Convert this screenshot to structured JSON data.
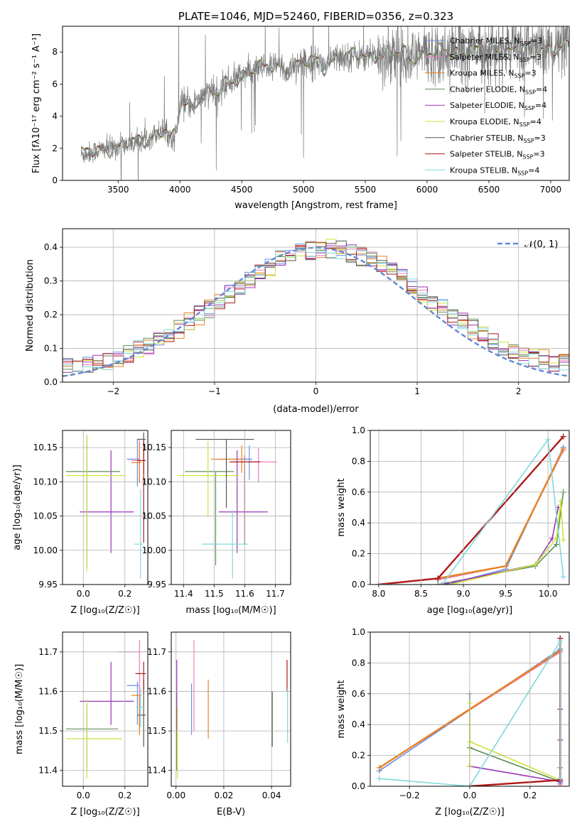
{
  "colors": {
    "Chabrier MILES": "#6c8ee0",
    "Salpeter MILES": "#e67fbf",
    "Kroupa MILES": "#e8821e",
    "Chabrier ELODIE": "#5f8f55",
    "Salpeter ELODIE": "#9b35b8",
    "Kroupa ELODIE": "#cde33c",
    "Chabrier STELIB": "#555555",
    "Salpeter STELIB": "#b01818",
    "Kroupa STELIB": "#80d8dc"
  },
  "chart_data": [
    {
      "id": "spectrum",
      "type": "line",
      "title": "PLATE=1046, MJD=52460, FIBERID=0356, z=0.323",
      "xlabel": "wavelength [Angstrom, rest frame]",
      "ylabel": "Flux [fλ10⁻¹⁷ erg cm⁻² s⁻¹ A⁻¹]",
      "xlim": [
        3050,
        7150
      ],
      "ylim": [
        0,
        9.6
      ],
      "xticks": [
        3500,
        4000,
        4500,
        5000,
        5500,
        6000,
        6500,
        7000
      ],
      "yticks": [
        0,
        2,
        4,
        6,
        8
      ],
      "grid": false,
      "legend_position": "top-right",
      "legend": [
        "Chabrier MILES, N_SSP=3",
        "Salpeter MILES, N_SSP=3",
        "Kroupa MILES, N_SSP=3",
        "Chabrier ELODIE, N_SSP=4",
        "Salpeter ELODIE, N_SSP=4",
        "Kroupa ELODIE, N_SSP=4",
        "Chabrier STELIB, N_SSP=3",
        "Salpeter STELIB, N_SSP=3",
        "Kroupa STELIB, N_SSP=4"
      ],
      "continuum_x": [
        3200,
        3250,
        3400,
        3500,
        3600,
        3700,
        3800,
        3900,
        4000,
        4100,
        4200,
        4300,
        4400,
        4500,
        4600,
        4800,
        5000,
        5200,
        5500,
        5800,
        6000,
        6300,
        6600,
        7000,
        7150
      ],
      "continuum_y": [
        1.6,
        1.7,
        2.0,
        2.1,
        2.3,
        2.5,
        2.9,
        3.3,
        4.7,
        5.0,
        5.3,
        5.7,
        6.1,
        6.6,
        6.9,
        7.1,
        7.3,
        7.6,
        7.8,
        7.9,
        7.9,
        8.1,
        8.2,
        8.3,
        8.3
      ]
    },
    {
      "id": "residuals",
      "type": "step",
      "xlabel": "(data-model)/error",
      "ylabel": "Normed distribution",
      "xlim": [
        -2.5,
        2.5
      ],
      "ylim": [
        0,
        0.455
      ],
      "xticks": [
        -2,
        -1,
        0,
        1,
        2
      ],
      "yticks": [
        0.0,
        0.1,
        0.2,
        0.3,
        0.4
      ],
      "grid": true,
      "legend_position": "top-right",
      "legend": [
        "𝒩(0, 1)"
      ],
      "bin_width": 0.1,
      "bin_start": -2.5
    },
    {
      "id": "age-vs-Z",
      "type": "errorbar",
      "xlabel": "Z [log₁₀(Z/Z☉)]",
      "ylabel": "age  [log₁₀(age/yr)]",
      "xlim": [
        -0.1,
        0.31
      ],
      "ylim": [
        9.95,
        10.175
      ],
      "xticks": [
        0.0,
        0.2
      ],
      "yticks": [
        9.95,
        10.0,
        10.05,
        10.1,
        10.15
      ],
      "points": [
        {
          "model": "Chabrier MILES",
          "x": 0.26,
          "xerr": [
            0.05,
            0.01
          ],
          "y": 10.133,
          "yerr": [
            0.04,
            0.03
          ]
        },
        {
          "model": "Salpeter MILES",
          "x": 0.27,
          "xerr": [
            0.04,
            0.01
          ],
          "y": 10.131,
          "yerr": [
            0.03,
            0.03
          ]
        },
        {
          "model": "Kroupa MILES",
          "x": 0.27,
          "xerr": [
            0.04,
            0.01
          ],
          "y": 10.128,
          "yerr": [
            0.03,
            0.03
          ]
        },
        {
          "model": "Chabrier ELODIE",
          "x": 0.017,
          "xerr": [
            0.1,
            0.16
          ],
          "y": 10.115,
          "yerr": [
            0.14,
            0.05
          ]
        },
        {
          "model": "Salpeter ELODIE",
          "x": 0.133,
          "xerr": [
            0.15,
            0.11
          ],
          "y": 10.056,
          "yerr": [
            0.06,
            0.09
          ]
        },
        {
          "model": "Kroupa ELODIE",
          "x": 0.017,
          "xerr": [
            0.1,
            0.18
          ],
          "y": 10.109,
          "yerr": [
            0.14,
            0.06
          ]
        },
        {
          "model": "Chabrier STELIB",
          "x": 0.29,
          "xerr": [
            0.03,
            0.01
          ],
          "y": 10.162,
          "yerr": [
            0.05,
            0.01
          ]
        },
        {
          "model": "Salpeter STELIB",
          "x": 0.29,
          "xerr": [
            0.03,
            0.01
          ],
          "y": 10.131,
          "yerr": [
            0.12,
            0.03
          ]
        },
        {
          "model": "Kroupa STELIB",
          "x": 0.275,
          "xerr": [
            0.03,
            0.01
          ],
          "y": 10.009,
          "yerr": [
            0.05,
            0.08
          ]
        }
      ]
    },
    {
      "id": "age-vs-mass",
      "type": "errorbar",
      "xlabel": "mass [log₁₀(M/M☉)]",
      "ylabel": "",
      "xlim": [
        11.36,
        11.75
      ],
      "ylim": [
        9.95,
        10.175
      ],
      "xticks": [
        11.4,
        11.5,
        11.6,
        11.7
      ],
      "yticks": [
        9.95,
        10.0,
        10.05,
        10.1,
        10.15
      ],
      "points": [
        {
          "model": "Chabrier MILES",
          "x": 11.615,
          "xerr": [
            0.1,
            0.01
          ],
          "y": 10.133,
          "yerr": [
            0.03,
            0.02
          ]
        },
        {
          "model": "Salpeter MILES",
          "x": 11.645,
          "xerr": [
            0.05,
            0.06
          ],
          "y": 10.129,
          "yerr": [
            0.03,
            0.02
          ]
        },
        {
          "model": "Kroupa MILES",
          "x": 11.59,
          "xerr": [
            0.1,
            0.0
          ],
          "y": 10.133,
          "yerr": [
            0.02,
            0.02
          ]
        },
        {
          "model": "Chabrier ELODIE",
          "x": 11.505,
          "xerr": [
            0.1,
            0.06
          ],
          "y": 10.115,
          "yerr": [
            0.137,
            0.0
          ]
        },
        {
          "model": "Salpeter ELODIE",
          "x": 11.575,
          "xerr": [
            0.06,
            0.1
          ],
          "y": 10.056,
          "yerr": [
            0.06,
            0.09
          ]
        },
        {
          "model": "Kroupa ELODIE",
          "x": 11.48,
          "xerr": [
            0.1,
            0.1
          ],
          "y": 10.109,
          "yerr": [
            0.06,
            0.05
          ]
        },
        {
          "model": "Chabrier STELIB",
          "x": 11.54,
          "xerr": [
            0.1,
            0.09
          ],
          "y": 10.162,
          "yerr": [
            0.1,
            0.0
          ]
        },
        {
          "model": "Salpeter STELIB",
          "x": 11.6,
          "xerr": [
            0.05,
            0.05
          ],
          "y": 10.129,
          "yerr": [
            0.12,
            0.01
          ]
        },
        {
          "model": "Kroupa STELIB",
          "x": 11.56,
          "xerr": [
            0.1,
            0.05
          ],
          "y": 10.009,
          "yerr": [
            0.05,
            0.05
          ]
        }
      ]
    },
    {
      "id": "massweight-vs-age",
      "type": "line",
      "xlabel": "age  [log₁₀(age/yr)]",
      "ylabel": "mass weight",
      "xlim": [
        7.9,
        10.25
      ],
      "ylim": [
        0,
        1.0
      ],
      "xticks": [
        8.0,
        8.5,
        9.0,
        9.5,
        10.0
      ],
      "yticks": [
        0.0,
        0.2,
        0.4,
        0.6,
        0.8,
        1.0
      ],
      "grid": true,
      "series": [
        {
          "model": "Chabrier MILES",
          "x": [
            8.8,
            9.5,
            10.18
          ],
          "y": [
            0.0,
            0.1,
            0.89
          ]
        },
        {
          "model": "Salpeter MILES",
          "x": [
            8.7,
            9.5,
            10.18
          ],
          "y": [
            0.03,
            0.12,
            0.87
          ]
        },
        {
          "model": "Kroupa MILES",
          "x": [
            8.7,
            9.5,
            10.18
          ],
          "y": [
            0.04,
            0.12,
            0.88
          ]
        },
        {
          "model": "Chabrier ELODIE",
          "x": [
            8.7,
            9.85,
            10.1,
            10.18
          ],
          "y": [
            0.0,
            0.12,
            0.26,
            0.6
          ]
        },
        {
          "model": "Salpeter ELODIE",
          "x": [
            8.75,
            9.85,
            10.05,
            10.12
          ],
          "y": [
            0.0,
            0.13,
            0.3,
            0.5
          ]
        },
        {
          "model": "Kroupa ELODIE",
          "x": [
            8.85,
            9.85,
            10.1,
            10.15,
            10.18
          ],
          "y": [
            0.0,
            0.13,
            0.3,
            0.54,
            0.29
          ]
        },
        {
          "model": "Chabrier STELIB",
          "x": [
            8.0,
            8.7,
            10.18
          ],
          "y": [
            0.0,
            0.04,
            0.96
          ]
        },
        {
          "model": "Salpeter STELIB",
          "x": [
            8.0,
            8.7,
            10.18
          ],
          "y": [
            0.0,
            0.04,
            0.96
          ]
        },
        {
          "model": "Kroupa STELIB",
          "x": [
            8.0,
            8.75,
            10.0,
            10.18
          ],
          "y": [
            0.0,
            0.0,
            0.94,
            0.05
          ]
        }
      ]
    },
    {
      "id": "mass-vs-Z",
      "type": "errorbar",
      "xlabel": "Z [log₁₀(Z/Z☉)]",
      "ylabel": "mass [log₁₀(M/M☉)]",
      "xlim": [
        -0.1,
        0.31
      ],
      "ylim": [
        11.36,
        11.75
      ],
      "xticks": [
        0.0,
        0.2
      ],
      "yticks": [
        11.4,
        11.5,
        11.6,
        11.7
      ],
      "points": [
        {
          "model": "Chabrier MILES",
          "x": 0.26,
          "xerr": [
            0.05,
            0.01
          ],
          "y": 11.615,
          "yerr": [
            0.1,
            0.01
          ]
        },
        {
          "model": "Salpeter MILES",
          "x": 0.27,
          "xerr": [
            0.1,
            0.01
          ],
          "y": 11.7,
          "yerr": [
            0.2,
            0.03
          ]
        },
        {
          "model": "Kroupa MILES",
          "x": 0.27,
          "xerr": [
            0.04,
            0.01
          ],
          "y": 11.59,
          "yerr": [
            0.1,
            0.0
          ]
        },
        {
          "model": "Chabrier ELODIE",
          "x": 0.017,
          "xerr": [
            0.1,
            0.15
          ],
          "y": 11.505,
          "yerr": [
            0.1,
            0.06
          ]
        },
        {
          "model": "Salpeter ELODIE",
          "x": 0.133,
          "xerr": [
            0.15,
            0.11
          ],
          "y": 11.575,
          "yerr": [
            0.06,
            0.1
          ]
        },
        {
          "model": "Kroupa ELODIE",
          "x": 0.017,
          "xerr": [
            0.1,
            0.17
          ],
          "y": 11.48,
          "yerr": [
            0.1,
            0.1
          ]
        },
        {
          "model": "Chabrier STELIB",
          "x": 0.29,
          "xerr": [
            0.03,
            0.01
          ],
          "y": 11.54,
          "yerr": [
            0.08,
            0.09
          ]
        },
        {
          "model": "Salpeter STELIB",
          "x": 0.29,
          "xerr": [
            0.04,
            0.01
          ],
          "y": 11.645,
          "yerr": [
            0.05,
            0.03
          ]
        },
        {
          "model": "Kroupa STELIB",
          "x": 0.275,
          "xerr": [
            0.02,
            0.02
          ],
          "y": 11.56,
          "yerr": [
            0.05,
            0.05
          ]
        }
      ]
    },
    {
      "id": "mass-vs-EBV",
      "type": "errorbar",
      "xlabel": "E(B-V)",
      "ylabel": "",
      "xlim": [
        -0.002,
        0.048
      ],
      "ylim": [
        11.36,
        11.75
      ],
      "xticks": [
        0.0,
        0.02,
        0.04
      ],
      "yticks": [
        11.4,
        11.5,
        11.6,
        11.7
      ],
      "points": [
        {
          "model": "Chabrier MILES",
          "x": 0.0065,
          "xerr": [
            0,
            0
          ],
          "y": 11.57,
          "yerr": [
            0.08,
            0.05
          ]
        },
        {
          "model": "Salpeter MILES",
          "x": 0.0075,
          "xerr": [
            0,
            0
          ],
          "y": 11.64,
          "yerr": [
            0.14,
            0.09
          ]
        },
        {
          "model": "Kroupa MILES",
          "x": 0.0135,
          "xerr": [
            0,
            0
          ],
          "y": 11.55,
          "yerr": [
            0.07,
            0.08
          ]
        },
        {
          "model": "Chabrier ELODIE",
          "x": 0.0002,
          "xerr": [
            0,
            0
          ],
          "y": 11.5,
          "yerr": [
            0.1,
            0.1
          ]
        },
        {
          "model": "Salpeter ELODIE",
          "x": 0.0003,
          "xerr": [
            0,
            0
          ],
          "y": 11.58,
          "yerr": [
            0.08,
            0.1
          ]
        },
        {
          "model": "Kroupa ELODIE",
          "x": 0.0006,
          "xerr": [
            0,
            0
          ],
          "y": 11.48,
          "yerr": [
            0.1,
            0.08
          ]
        },
        {
          "model": "Chabrier STELIB",
          "x": 0.0403,
          "xerr": [
            0,
            0
          ],
          "y": 11.53,
          "yerr": [
            0.07,
            0.07
          ]
        },
        {
          "model": "Salpeter STELIB",
          "x": 0.0465,
          "xerr": [
            0,
            0
          ],
          "y": 11.64,
          "yerr": [
            0.04,
            0.04
          ]
        },
        {
          "model": "Kroupa STELIB",
          "x": 0.0467,
          "xerr": [
            0,
            0
          ],
          "y": 11.54,
          "yerr": [
            0.07,
            0.07
          ]
        }
      ]
    },
    {
      "id": "massweight-vs-Z",
      "type": "line",
      "xlabel": "Z [log₁₀(Z/Z☉)]",
      "ylabel": "mass weight",
      "xlim": [
        -0.33,
        0.33
      ],
      "ylim": [
        0,
        1.0
      ],
      "xticks": [
        -0.2,
        0.0,
        0.2
      ],
      "yticks": [
        0.0,
        0.2,
        0.4,
        0.6,
        0.8,
        1.0
      ],
      "grid": true,
      "series": [
        {
          "model": "Chabrier MILES",
          "x": [
            -0.3,
            0.3,
            0.3
          ],
          "y": [
            0.1,
            0.89,
            0.02
          ]
        },
        {
          "model": "Salpeter MILES",
          "x": [
            -0.3,
            0.3,
            0.3
          ],
          "y": [
            0.12,
            0.87,
            0.01
          ]
        },
        {
          "model": "Kroupa MILES",
          "x": [
            -0.3,
            0.3,
            0.3
          ],
          "y": [
            0.12,
            0.88,
            0.04
          ]
        },
        {
          "model": "Chabrier ELODIE",
          "x": [
            0.0,
            0.0,
            0.3,
            0.3
          ],
          "y": [
            0.6,
            0.25,
            0.03,
            0.12
          ]
        },
        {
          "model": "Salpeter ELODIE",
          "x": [
            0.0,
            0.3,
            0.3,
            0.3
          ],
          "y": [
            0.13,
            0.03,
            0.3,
            0.5
          ]
        },
        {
          "model": "Kroupa ELODIE",
          "x": [
            0.0,
            0.0,
            0.0,
            0.3
          ],
          "y": [
            0.54,
            0.13,
            0.29,
            0.04
          ]
        },
        {
          "model": "Chabrier STELIB",
          "x": [
            0.0,
            0.3,
            0.3
          ],
          "y": [
            0.0,
            0.04,
            0.96
          ]
        },
        {
          "model": "Salpeter STELIB",
          "x": [
            0.0,
            0.3,
            0.3
          ],
          "y": [
            0.0,
            0.04,
            0.96
          ]
        },
        {
          "model": "Kroupa STELIB",
          "x": [
            -0.3,
            0.0,
            0.3,
            0.3
          ],
          "y": [
            0.05,
            0.0,
            0.94,
            0.05
          ]
        }
      ]
    }
  ]
}
